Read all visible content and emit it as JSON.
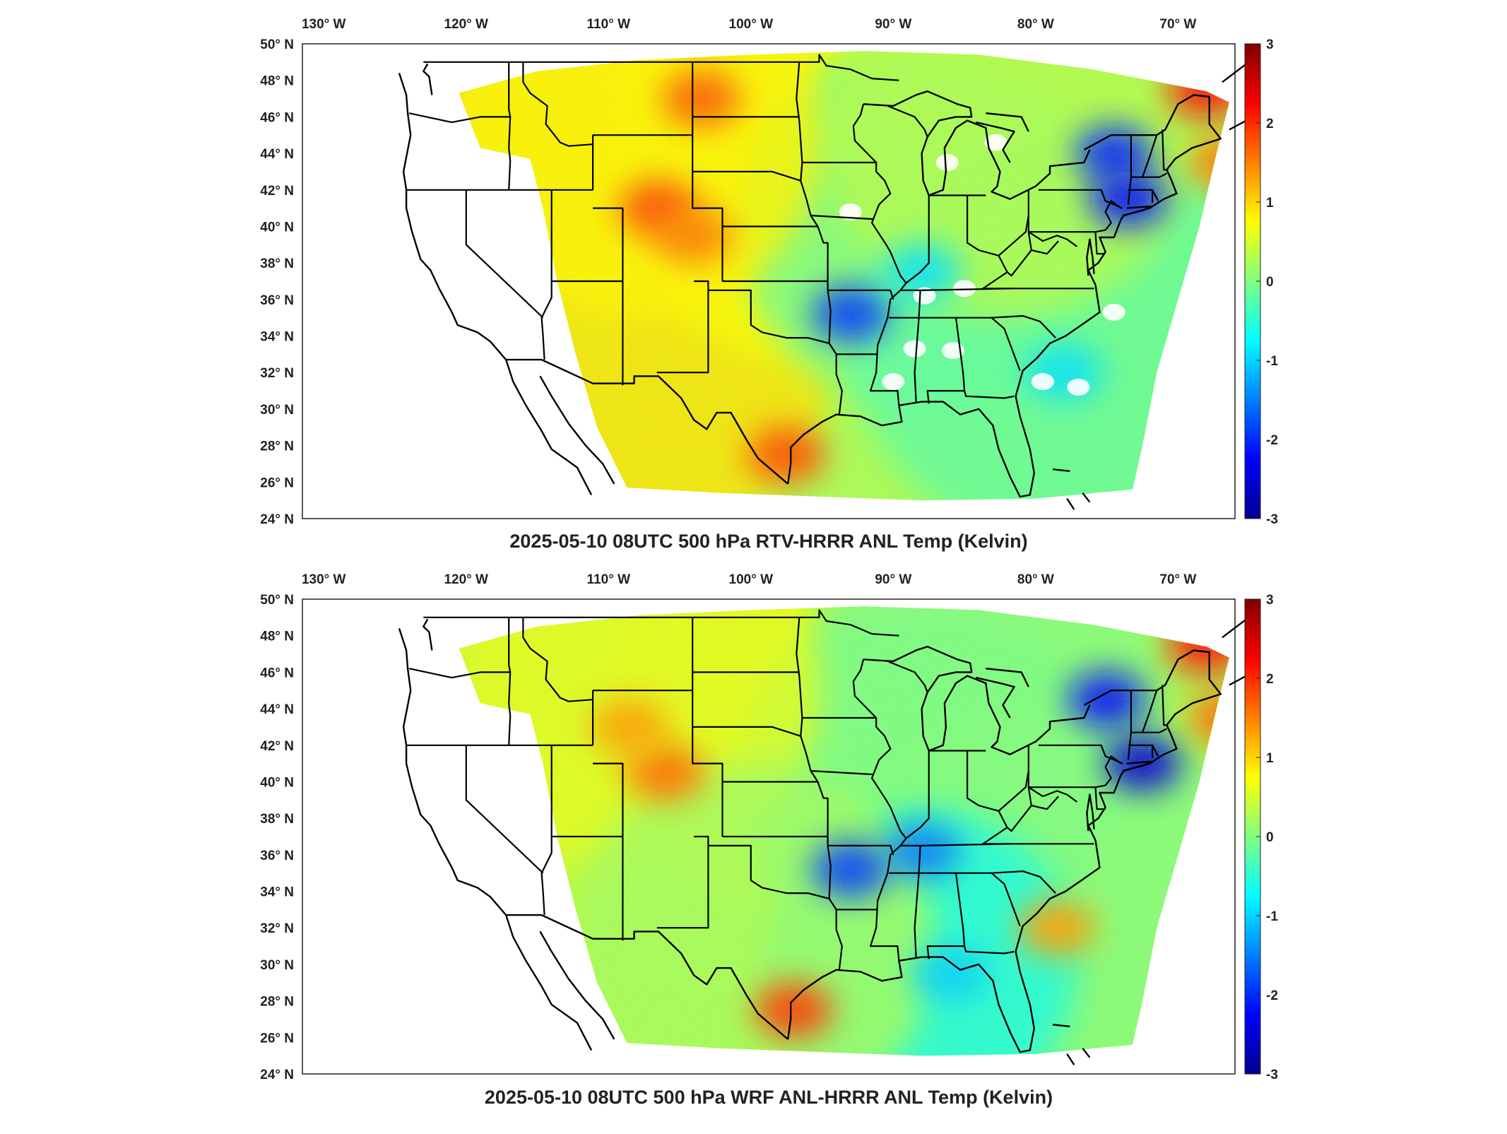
{
  "panels": [
    {
      "title": "2025-05-10 08UTC 500 hPa RTV-HRRR ANL Temp (Kelvin)",
      "field_summary": "difference field; warm anomalies over Rockies, Montana and south Texas; cool anomalies over Arkansas/Tennessee, New York/New England; white missing-data patches over the Southeast and Great Lakes",
      "hotspots": [
        {
          "lon": -106.5,
          "lat": 41.0,
          "value": 1.8
        },
        {
          "lon": -103.5,
          "lat": 47.0,
          "value": 1.7
        },
        {
          "lon": -97.5,
          "lat": 27.5,
          "value": 1.8
        },
        {
          "lon": -104.0,
          "lat": 39.5,
          "value": 1.5
        },
        {
          "lon": -93.0,
          "lat": 35.2,
          "value": -1.9
        },
        {
          "lon": -74.5,
          "lat": 44.0,
          "value": -2.0
        },
        {
          "lon": -73.5,
          "lat": 41.5,
          "value": -2.2
        },
        {
          "lon": -68.0,
          "lat": 47.5,
          "value": 2.2
        },
        {
          "lon": -66.5,
          "lat": 43.5,
          "value": 1.5
        },
        {
          "lon": -88.0,
          "lat": 37.5,
          "value": -0.9
        },
        {
          "lon": -78.0,
          "lat": 32.0,
          "value": -0.9
        }
      ]
    },
    {
      "title": "2025-05-10 08UTC 500 hPa WRF ANL-HRRR ANL Temp (Kelvin)",
      "field_summary": "difference field; warm anomalies over Wyoming/Colorado and south Texas coast; strong cool anomalies over New York/New England and Arkansas",
      "hotspots": [
        {
          "lon": -106.0,
          "lat": 40.5,
          "value": 1.6
        },
        {
          "lon": -97.0,
          "lat": 27.5,
          "value": 1.9
        },
        {
          "lon": -108.5,
          "lat": 43.0,
          "value": 1.3
        },
        {
          "lon": -93.0,
          "lat": 35.2,
          "value": -1.9
        },
        {
          "lon": -88.0,
          "lat": 36.2,
          "value": -1.5
        },
        {
          "lon": -75.0,
          "lat": 44.5,
          "value": -2.2
        },
        {
          "lon": -72.5,
          "lat": 41.0,
          "value": -2.5
        },
        {
          "lon": -68.0,
          "lat": 47.5,
          "value": 2.2
        },
        {
          "lon": -66.5,
          "lat": 43.5,
          "value": 1.6
        },
        {
          "lon": -78.5,
          "lat": 32.0,
          "value": 1.3
        },
        {
          "lon": -86.0,
          "lat": 29.5,
          "value": -1.0
        }
      ]
    }
  ],
  "lon_ticks": [
    "130° W",
    "120° W",
    "110° W",
    "100° W",
    "90° W",
    "80° W",
    "70° W"
  ],
  "lat_ticks": [
    "50° N",
    "48° N",
    "46° N",
    "44° N",
    "42° N",
    "40° N",
    "38° N",
    "36° N",
    "34° N",
    "32° N",
    "30° N",
    "28° N",
    "26° N",
    "24° N"
  ],
  "colorbar": {
    "ticks": [
      "3",
      "2",
      "1",
      "0",
      "-1",
      "-2",
      "-3"
    ],
    "min": -3,
    "max": 3,
    "colormap": "jet"
  },
  "map_extent": {
    "lon": [
      -131.5,
      -66.0
    ],
    "lat": [
      24,
      50
    ]
  }
}
